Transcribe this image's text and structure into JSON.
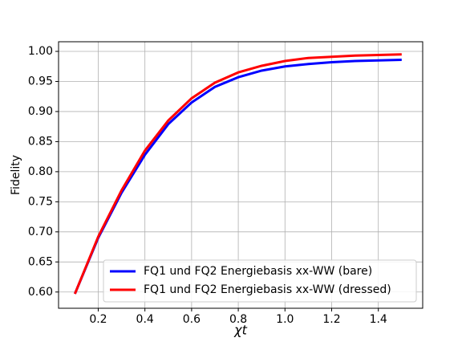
{
  "chart_data": {
    "type": "line",
    "x_label": "χt",
    "y_label": "Fidelity",
    "x": [
      0.1,
      0.2,
      0.3,
      0.4,
      0.5,
      0.6,
      0.7,
      0.8,
      0.9,
      1.0,
      1.1,
      1.2,
      1.3,
      1.4,
      1.5
    ],
    "series": [
      {
        "name": "FQ1 und FQ2 Energiebasis xx-WW (bare)",
        "color": "#0000ff",
        "values": [
          0.597,
          0.69,
          0.765,
          0.828,
          0.879,
          0.915,
          0.941,
          0.957,
          0.968,
          0.975,
          0.979,
          0.982,
          0.984,
          0.985,
          0.986
        ]
      },
      {
        "name": "FQ1 und FQ2 Energiebasis xx-WW (dressed)",
        "color": "#ff0000",
        "values": [
          0.597,
          0.692,
          0.769,
          0.835,
          0.885,
          0.922,
          0.948,
          0.965,
          0.976,
          0.984,
          0.989,
          0.991,
          0.993,
          0.994,
          0.995
        ]
      }
    ],
    "xlim": [
      0.03,
      1.59
    ],
    "ylim": [
      0.573,
      1.016
    ],
    "xticks": [
      0.2,
      0.4,
      0.6,
      0.8,
      {
        "value": 1.0,
        "label": "1.0"
      },
      1.2,
      1.4
    ],
    "yticks": [
      {
        "value": 0.6,
        "label": "0.60"
      },
      0.65,
      {
        "value": 0.7,
        "label": "0.70"
      },
      0.75,
      {
        "value": 0.8,
        "label": "0.80"
      },
      0.85,
      {
        "value": 0.9,
        "label": "0.90"
      },
      0.95,
      {
        "value": 1.0,
        "label": "1.00"
      }
    ],
    "grid": true,
    "legend": "lower right"
  }
}
